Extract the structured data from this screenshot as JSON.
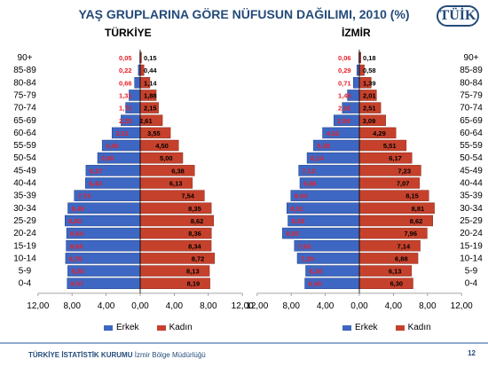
{
  "header": {
    "title": "YAŞ GRUPLARINA GÖRE NÜFUSUN DAĞILIMI, 2010 (%)",
    "logo": "TÜİK"
  },
  "footer": {
    "org": "TÜRKİYE İSTATİSTİK KURUMU",
    "office": "İzmir Bölge Müdürlüğü",
    "page": "12"
  },
  "colors": {
    "male": "#3d67c2",
    "female": "#c6412c",
    "male_label": "#e8202a",
    "female_label": "#000000"
  },
  "chart_data": [
    {
      "type": "bar",
      "title": "TÜRKİYE",
      "categories": [
        "0-4",
        "5-9",
        "10-14",
        "15-19",
        "20-24",
        "25-29",
        "30-34",
        "35-39",
        "40-44",
        "45-49",
        "50-54",
        "55-59",
        "60-64",
        "65-69",
        "70-74",
        "75-79",
        "80-84",
        "85-89",
        "90+"
      ],
      "series": [
        {
          "name": "Erkek",
          "values": [
            8.57,
            8.5,
            8.76,
            8.69,
            8.64,
            8.83,
            8.49,
            7.74,
            6.43,
            6.37,
            5.0,
            4.46,
            3.31,
            2.25,
            1.71,
            1.31,
            0.66,
            0.22,
            0.05
          ],
          "labels": [
            "8,57",
            "8,50",
            "8,76",
            "8,69",
            "8,64",
            "8,83",
            "8,49",
            "7,74",
            "6,43",
            "6,37",
            "5,00",
            "4,46",
            "3,31",
            "2,25",
            "1,71",
            "1,31",
            "0,66",
            "0,22",
            "0,05"
          ]
        },
        {
          "name": "Kadın",
          "values": [
            8.19,
            8.13,
            8.72,
            8.34,
            8.36,
            8.62,
            8.35,
            7.54,
            6.13,
            6.38,
            5.0,
            4.5,
            3.55,
            2.61,
            2.15,
            1.88,
            1.14,
            0.44,
            0.15
          ],
          "labels": [
            "8,19",
            "8,13",
            "8,72",
            "8,34",
            "8,36",
            "8,62",
            "8,35",
            "7,54",
            "6,13",
            "6,38",
            "5,00",
            "4,50",
            "3,55",
            "2,61",
            "2,15",
            "1,88",
            "1,14",
            "0,44",
            "0,15"
          ]
        }
      ],
      "xlim": [
        -12,
        12
      ],
      "xticks": [
        "12,00",
        "8,00",
        "4,00",
        "0,00",
        "4,00",
        "8,00",
        "12,00"
      ],
      "grid": false,
      "legend": "bottom"
    },
    {
      "type": "bar",
      "title": "İZMİR",
      "categories": [
        "0-4",
        "5-9",
        "10-14",
        "15-19",
        "20-24",
        "25-29",
        "30-34",
        "35-39",
        "40-44",
        "45-49",
        "50-54",
        "55-59",
        "60-64",
        "65-69",
        "70-74",
        "75-79",
        "80-84",
        "85-89",
        "90+"
      ],
      "series": [
        {
          "name": "Erkek",
          "values": [
            6.4,
            6.3,
            7.29,
            7.63,
            9.03,
            8.38,
            8.51,
            8.04,
            6.98,
            7.12,
            6.14,
            5.38,
            4.32,
            2.99,
            2.01,
            1.4,
            0.71,
            0.29,
            0.06
          ],
          "labels": [
            "6,40",
            "6,30",
            "7,29",
            "7,63",
            "9,03",
            "8,38",
            "8,51",
            "8,04",
            "6,98",
            "7,12",
            "6,14",
            "5,38",
            "4,32",
            "2,99",
            "2,01",
            "1,40",
            "0,71",
            "0,29",
            "0,06"
          ]
        },
        {
          "name": "Kadın",
          "values": [
            6.3,
            6.13,
            6.88,
            7.14,
            7.96,
            8.62,
            8.81,
            8.15,
            7.07,
            7.23,
            6.17,
            5.51,
            4.29,
            3.09,
            2.51,
            2.01,
            1.39,
            0.58,
            0.18
          ],
          "labels": [
            "6,30",
            "6,13",
            "6,88",
            "7,14",
            "7,96",
            "8,62",
            "8,81",
            "8,15",
            "7,07",
            "7,23",
            "6,17",
            "5,51",
            "4,29",
            "3,09",
            "2,51",
            "2,01",
            "1,39",
            "0,58",
            "0,18"
          ]
        }
      ],
      "xlim": [
        -12,
        12
      ],
      "xticks": [
        "12,00",
        "8,00",
        "4,00",
        "0,00",
        "4,00",
        "8,00",
        "12,00"
      ],
      "grid": false,
      "legend": "bottom"
    }
  ]
}
